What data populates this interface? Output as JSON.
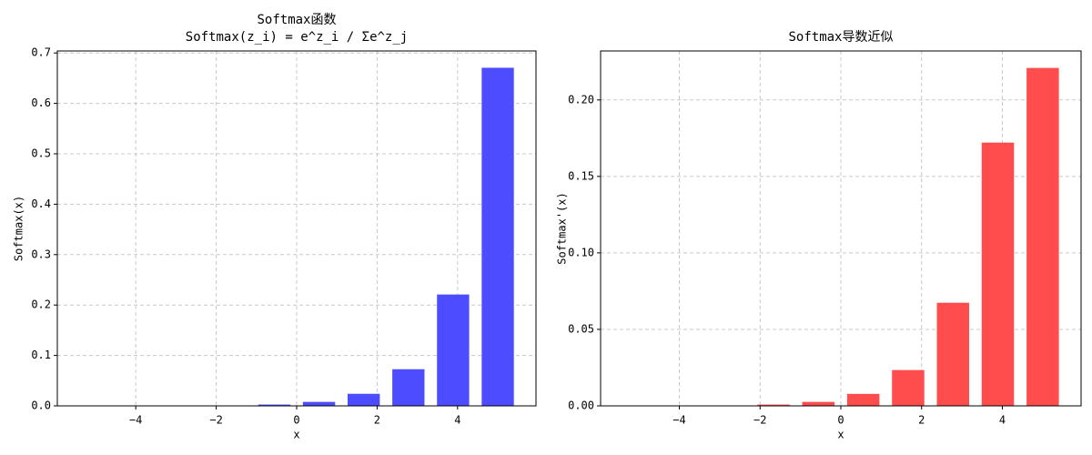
{
  "chart_data": [
    {
      "type": "bar",
      "title": "Softmax函数",
      "subtitle": "Softmax(z_i) = e^z_i / Σe^z_j",
      "x_label": "x",
      "y_label": "Softmax(x)",
      "x": [
        -5,
        -3.889,
        -2.778,
        -1.667,
        -0.556,
        0.556,
        1.667,
        2.778,
        3.889,
        5
      ],
      "values": [
        3.05e-05,
        9.27e-05,
        0.000282,
        0.000855,
        0.0026,
        0.00789,
        0.0239,
        0.0727,
        0.2209,
        0.6707
      ],
      "color": "#4d4dff",
      "xlim": [
        -5.95,
        5.95
      ],
      "xticks": [
        {
          "value": -4,
          "label": "−4"
        },
        {
          "value": -2,
          "label": "−2"
        },
        0,
        2,
        4
      ],
      "ylim": [
        0,
        0.704
      ],
      "yticks": [
        {
          "value": 0,
          "label": "0.0"
        },
        0.1,
        0.2,
        0.3,
        0.4,
        0.5,
        0.6,
        0.7
      ],
      "grid": true
    },
    {
      "type": "bar",
      "title": "Softmax导数近似",
      "x_label": "x",
      "y_label": "Softmax'(x)",
      "x": [
        -5,
        -3.889,
        -2.778,
        -1.667,
        -0.556,
        0.556,
        1.667,
        2.778,
        3.889,
        5
      ],
      "values": [
        3.05e-05,
        9.27e-05,
        0.000282,
        0.000855,
        0.00259,
        0.00783,
        0.0234,
        0.0674,
        0.1721,
        0.2209
      ],
      "color": "#ff4d4d",
      "xlim": [
        -5.95,
        5.95
      ],
      "xticks": [
        {
          "value": -4,
          "label": "−4"
        },
        {
          "value": -2,
          "label": "−2"
        },
        0,
        2,
        4
      ],
      "ylim": [
        0,
        0.232
      ],
      "yticks": [
        {
          "value": 0,
          "label": "0.00"
        },
        {
          "value": 0.05,
          "label": "0.05"
        },
        {
          "value": 0.1,
          "label": "0.10"
        },
        {
          "value": 0.15,
          "label": "0.15"
        },
        {
          "value": 0.2,
          "label": "0.20"
        }
      ],
      "grid": true
    }
  ]
}
